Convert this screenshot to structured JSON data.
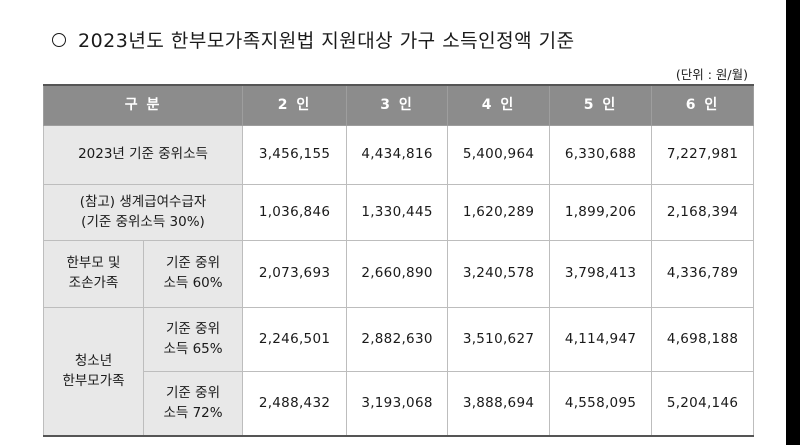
{
  "title": "2023년도 한부모가족지원법 지원대상 가구 소득인정액 기준",
  "unit": "(단위 : 원/월)",
  "header": [
    "구 분",
    "2 인",
    "3 인",
    "4 인",
    "5 인",
    "6 인"
  ],
  "rows": {
    "median": {
      "label": "2023년 기준 중위소득",
      "values": [
        "3,456,155",
        "4,434,816",
        "5,400,964",
        "6,330,688",
        "7,227,981"
      ]
    },
    "livelihood": {
      "label_line1": "(참고) 생계급여수급자",
      "label_line2": "(기준 중위소득 30%)",
      "values": [
        "1,036,846",
        "1,330,445",
        "1,620,289",
        "1,899,206",
        "2,168,394"
      ]
    },
    "single_parent": {
      "group_line1": "한부모 및",
      "group_line2": "조손가족",
      "sub_line1": "기준 중위",
      "sub_line2": "소득 60%",
      "values": [
        "2,073,693",
        "2,660,890",
        "3,240,578",
        "3,798,413",
        "4,336,789"
      ]
    },
    "youth_65": {
      "group_line1": "청소년",
      "group_line2": "한부모가족",
      "sub_line1": "기준 중위",
      "sub_line2": "소득 65%",
      "values": [
        "2,246,501",
        "2,882,630",
        "3,510,627",
        "4,114,947",
        "4,698,188"
      ]
    },
    "youth_72": {
      "sub_line1": "기준 중위",
      "sub_line2": "소득 72%",
      "values": [
        "2,488,432",
        "3,193,068",
        "3,888,694",
        "4,558,095",
        "5,204,146"
      ]
    }
  }
}
